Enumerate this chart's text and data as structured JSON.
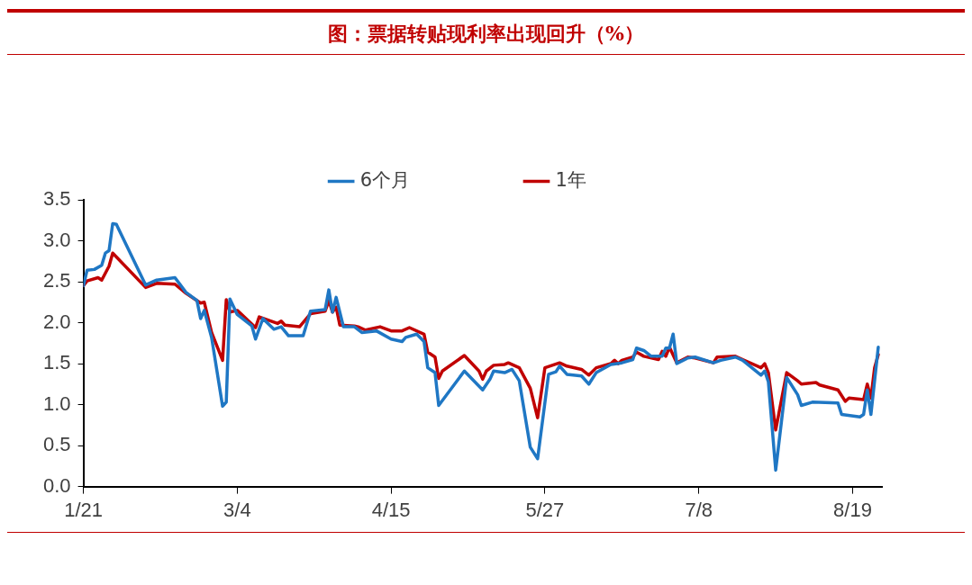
{
  "chart_data": {
    "type": "line",
    "title": "图：票据转贴现利率出现回升（%）",
    "legend": "top",
    "grid": false,
    "marker": "none",
    "line_style": "solid",
    "xlim": [
      "--01-21",
      "--08-27"
    ],
    "xticks": [
      {
        "value": "--01-21",
        "label": "1/21"
      },
      {
        "value": "--03-04",
        "label": "3/4"
      },
      {
        "value": "--04-15",
        "label": "4/15"
      },
      {
        "value": "--05-27",
        "label": "5/27"
      },
      {
        "value": "--07-08",
        "label": "7/8"
      },
      {
        "value": "--08-19",
        "label": "8/19"
      }
    ],
    "ylim": [
      0,
      3.5
    ],
    "yticks": [
      {
        "value": 0,
        "label": "0.0"
      },
      {
        "value": 0.5,
        "label": "0.5"
      },
      {
        "value": 1,
        "label": "1.0"
      },
      {
        "value": 1.5,
        "label": "1.5"
      },
      {
        "value": 2,
        "label": "2.0"
      },
      {
        "value": 2.5,
        "label": "2.5"
      },
      {
        "value": 3,
        "label": "3.0"
      },
      {
        "value": 3.5,
        "label": "3.5"
      }
    ],
    "series": [
      {
        "name": "6个月",
        "color": "#1f77c4",
        "x": [
          "--01-21",
          "--01-22",
          "--01-24",
          "--01-26",
          "--01-27",
          "--01-28",
          "--01-29",
          "--01-30",
          "--02-07",
          "--02-10",
          "--02-15",
          "--02-18",
          "--02-21",
          "--02-22",
          "--02-23",
          "--02-25",
          "--02-28",
          "--03-01",
          "--03-02",
          "--03-04",
          "--03-08",
          "--03-09",
          "--03-11",
          "--03-14",
          "--03-16",
          "--03-18",
          "--03-22",
          "--03-24",
          "--03-28",
          "--03-29",
          "--03-30",
          "--03-31",
          "--04-02",
          "--04-05",
          "--04-07",
          "--04-11",
          "--04-15",
          "--04-18",
          "--04-19",
          "--04-22",
          "--04-24",
          "--04-25",
          "--04-27",
          "--04-28",
          "--05-05",
          "--05-10",
          "--05-12",
          "--05-13",
          "--05-16",
          "--05-18",
          "--05-20",
          "--05-23",
          "--05-25",
          "--05-28",
          "--05-30",
          "--05-31",
          "--06-02",
          "--06-06",
          "--06-08",
          "--06-10",
          "--06-14",
          "--06-17",
          "--06-20",
          "--06-21",
          "--06-23",
          "--06-25",
          "--06-28",
          "--06-29",
          "--06-30",
          "--07-01",
          "--07-02",
          "--07-05",
          "--07-07",
          "--07-12",
          "--07-14",
          "--07-18",
          "--07-20",
          "--07-25",
          "--07-26",
          "--07-27",
          "--07-29",
          "--08-01",
          "--08-04",
          "--08-05",
          "--08-08",
          "--08-15",
          "--08-16",
          "--08-21",
          "--08-22",
          "--08-23",
          "--08-24",
          "--08-26"
        ],
        "values": [
          2.45,
          2.64,
          2.65,
          2.7,
          2.85,
          2.88,
          3.21,
          3.2,
          2.46,
          2.52,
          2.55,
          2.37,
          2.27,
          2.05,
          2.15,
          1.82,
          0.98,
          1.03,
          2.29,
          2.1,
          1.96,
          1.8,
          2.05,
          1.92,
          1.95,
          1.84,
          1.84,
          2.14,
          2.16,
          2.4,
          2.13,
          2.31,
          1.95,
          1.95,
          1.88,
          1.9,
          1.8,
          1.77,
          1.82,
          1.86,
          1.77,
          1.45,
          1.39,
          0.99,
          1.41,
          1.18,
          1.31,
          1.41,
          1.39,
          1.43,
          1.29,
          0.48,
          0.34,
          1.37,
          1.4,
          1.47,
          1.37,
          1.35,
          1.25,
          1.39,
          1.49,
          1.51,
          1.55,
          1.69,
          1.66,
          1.59,
          1.59,
          1.69,
          1.69,
          1.86,
          1.5,
          1.57,
          1.58,
          1.51,
          1.54,
          1.58,
          1.54,
          1.36,
          1.41,
          1.28,
          0.2,
          1.33,
          1.12,
          0.99,
          1.03,
          1.02,
          0.88,
          0.85,
          0.88,
          1.18,
          0.88,
          1.7
        ]
      },
      {
        "name": "1年",
        "color": "#c00000",
        "x": [
          "--01-21",
          "--01-22",
          "--01-25",
          "--01-26",
          "--01-28",
          "--01-29",
          "--02-07",
          "--02-10",
          "--02-15",
          "--02-18",
          "--02-22",
          "--02-23",
          "--02-25",
          "--02-28",
          "--03-01",
          "--03-02",
          "--03-04",
          "--03-09",
          "--03-10",
          "--03-15",
          "--03-16",
          "--03-17",
          "--03-21",
          "--03-24",
          "--03-28",
          "--03-29",
          "--03-30",
          "--03-31",
          "--04-01",
          "--04-05",
          "--04-06",
          "--04-08",
          "--04-12",
          "--04-15",
          "--04-18",
          "--04-20",
          "--04-24",
          "--04-25",
          "--04-27",
          "--04-28",
          "--04-29",
          "--05-05",
          "--05-09",
          "--05-10",
          "--05-11",
          "--05-13",
          "--05-16",
          "--05-17",
          "--05-20",
          "--05-23",
          "--05-25",
          "--05-27",
          "--05-31",
          "--06-02",
          "--06-06",
          "--06-08",
          "--06-10",
          "--06-14",
          "--06-15",
          "--06-16",
          "--06-17",
          "--06-20",
          "--06-21",
          "--06-23",
          "--06-27",
          "--06-28",
          "--06-29",
          "--06-30",
          "--07-02",
          "--07-05",
          "--07-07",
          "--07-12",
          "--07-13",
          "--07-18",
          "--07-20",
          "--07-25",
          "--07-26",
          "--07-27",
          "--07-29",
          "--08-01",
          "--08-04",
          "--08-05",
          "--08-09",
          "--08-10",
          "--08-15",
          "--08-17",
          "--08-18",
          "--08-22",
          "--08-23",
          "--08-24",
          "--08-25",
          "--08-26"
        ],
        "values": [
          2.45,
          2.51,
          2.55,
          2.52,
          2.69,
          2.85,
          2.43,
          2.48,
          2.47,
          2.36,
          2.24,
          2.25,
          1.88,
          1.54,
          2.28,
          2.13,
          2.15,
          1.94,
          2.07,
          1.99,
          2.02,
          1.97,
          1.95,
          2.11,
          2.14,
          2.27,
          2.13,
          2.19,
          1.97,
          1.96,
          1.95,
          1.91,
          1.95,
          1.9,
          1.9,
          1.94,
          1.86,
          1.64,
          1.58,
          1.32,
          1.41,
          1.6,
          1.41,
          1.31,
          1.41,
          1.48,
          1.49,
          1.51,
          1.45,
          1.2,
          0.84,
          1.45,
          1.51,
          1.47,
          1.43,
          1.36,
          1.45,
          1.5,
          1.54,
          1.5,
          1.54,
          1.58,
          1.64,
          1.59,
          1.55,
          1.65,
          1.59,
          1.7,
          1.51,
          1.58,
          1.57,
          1.51,
          1.58,
          1.59,
          1.55,
          1.45,
          1.5,
          1.39,
          0.69,
          1.39,
          1.29,
          1.25,
          1.27,
          1.24,
          1.18,
          1.04,
          1.08,
          1.06,
          1.25,
          1.08,
          1.45,
          1.61
        ]
      }
    ]
  }
}
